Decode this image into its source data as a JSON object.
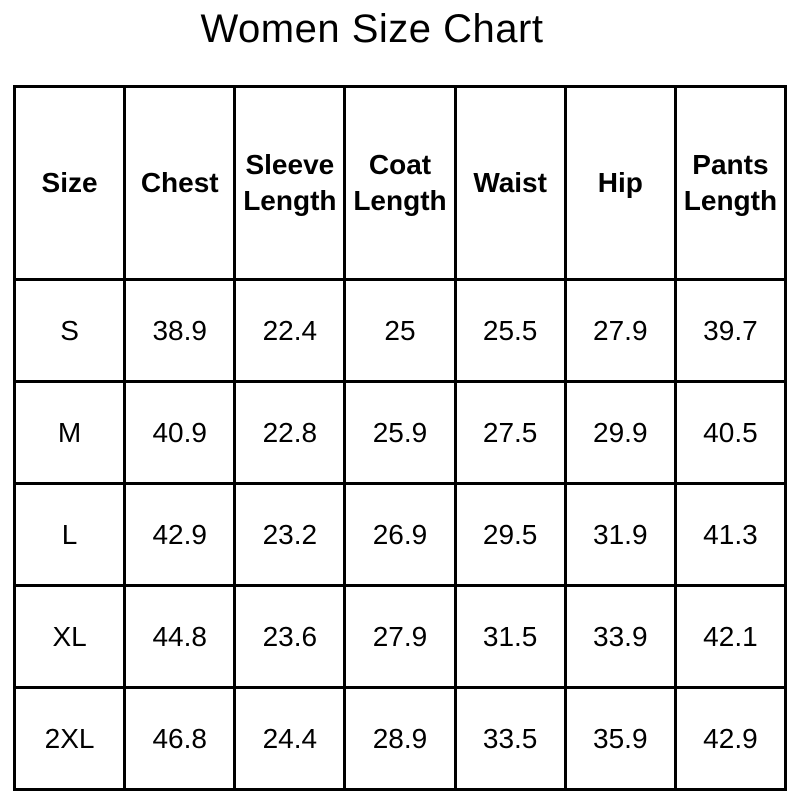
{
  "title": "Women Size Chart",
  "colors": {
    "background": "#ffffff",
    "border": "#000000",
    "text": "#000000"
  },
  "chart_data": {
    "type": "table",
    "title": "Women Size Chart",
    "columns": [
      "Size",
      "Chest",
      "Sleeve Length",
      "Coat Length",
      "Waist",
      "Hip",
      "Pants Length"
    ],
    "rows": [
      [
        "S",
        "38.9",
        "22.4",
        "25",
        "25.5",
        "27.9",
        "39.7"
      ],
      [
        "M",
        "40.9",
        "22.8",
        "25.9",
        "27.5",
        "29.9",
        "40.5"
      ],
      [
        "L",
        "42.9",
        "23.2",
        "26.9",
        "29.5",
        "31.9",
        "41.3"
      ],
      [
        "XL",
        "44.8",
        "23.6",
        "27.9",
        "31.5",
        "33.9",
        "42.1"
      ],
      [
        "2XL",
        "46.8",
        "24.4",
        "28.9",
        "33.5",
        "35.9",
        "42.9"
      ]
    ]
  }
}
